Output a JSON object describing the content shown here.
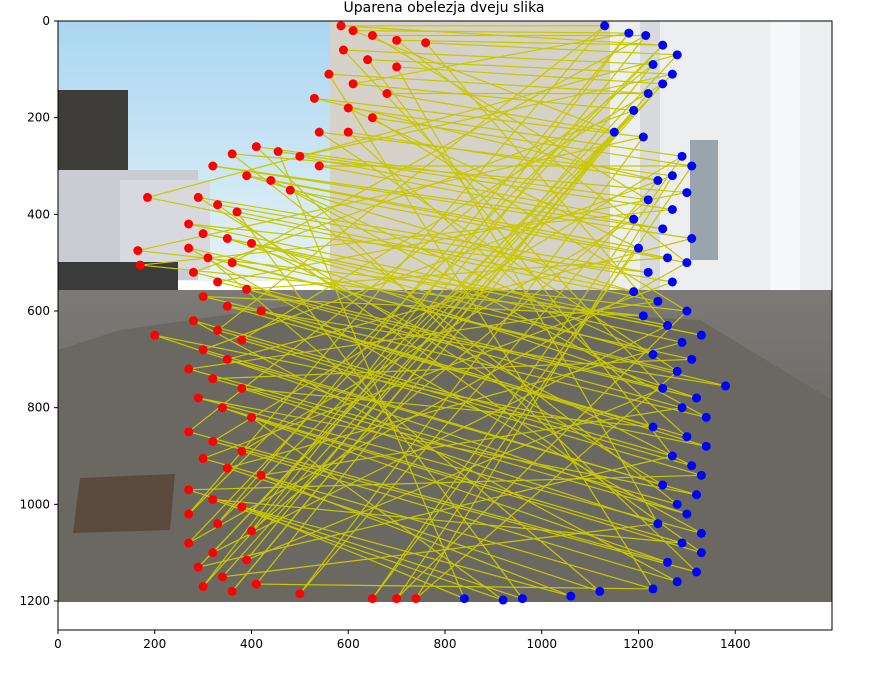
{
  "chart_data": {
    "type": "scatter",
    "title": "Uparena obelezja dveju slika",
    "xlabel": "",
    "ylabel": "",
    "xlim": [
      0,
      1600
    ],
    "ylim": [
      1260,
      0
    ],
    "y_inverted": true,
    "image_extent": {
      "width": 1600,
      "height": 1200
    },
    "x_ticks": [
      0,
      200,
      400,
      600,
      800,
      1000,
      1200,
      1400
    ],
    "y_ticks": [
      0,
      200,
      400,
      600,
      800,
      1000,
      1200
    ],
    "x_tick_labels": [
      "0",
      "200",
      "400",
      "600",
      "800",
      "1000",
      "1200",
      "1400"
    ],
    "y_tick_labels": [
      "0",
      "200",
      "400",
      "600",
      "800",
      "1000",
      "1200"
    ],
    "grid": false,
    "colors": {
      "left_points": "#ff0000",
      "right_points": "#0000ff",
      "match_lines": "#c8c800",
      "background_sky": "#bfe3f5",
      "background_house": "#e8e8ea",
      "background_ground": "#6f6c67"
    },
    "series": [
      {
        "role": "left_points",
        "marker": "circle",
        "points": [
          [
            585,
            10
          ],
          [
            610,
            20
          ],
          [
            650,
            30
          ],
          [
            700,
            40
          ],
          [
            760,
            45
          ],
          [
            590,
            60
          ],
          [
            640,
            80
          ],
          [
            700,
            95
          ],
          [
            560,
            110
          ],
          [
            610,
            130
          ],
          [
            680,
            150
          ],
          [
            530,
            160
          ],
          [
            600,
            180
          ],
          [
            650,
            200
          ],
          [
            540,
            230
          ],
          [
            600,
            230
          ],
          [
            360,
            275
          ],
          [
            410,
            260
          ],
          [
            455,
            270
          ],
          [
            500,
            280
          ],
          [
            540,
            300
          ],
          [
            320,
            300
          ],
          [
            390,
            320
          ],
          [
            440,
            330
          ],
          [
            480,
            350
          ],
          [
            290,
            365
          ],
          [
            330,
            380
          ],
          [
            370,
            395
          ],
          [
            185,
            365
          ],
          [
            165,
            475
          ],
          [
            170,
            505
          ],
          [
            270,
            420
          ],
          [
            300,
            440
          ],
          [
            350,
            450
          ],
          [
            400,
            460
          ],
          [
            270,
            470
          ],
          [
            310,
            490
          ],
          [
            360,
            500
          ],
          [
            280,
            520
          ],
          [
            330,
            540
          ],
          [
            390,
            555
          ],
          [
            300,
            570
          ],
          [
            350,
            590
          ],
          [
            420,
            600
          ],
          [
            200,
            650
          ],
          [
            280,
            620
          ],
          [
            330,
            640
          ],
          [
            380,
            660
          ],
          [
            300,
            680
          ],
          [
            350,
            700
          ],
          [
            270,
            720
          ],
          [
            320,
            740
          ],
          [
            380,
            760
          ],
          [
            290,
            780
          ],
          [
            340,
            800
          ],
          [
            400,
            820
          ],
          [
            270,
            850
          ],
          [
            320,
            870
          ],
          [
            380,
            890
          ],
          [
            300,
            905
          ],
          [
            350,
            925
          ],
          [
            420,
            940
          ],
          [
            270,
            970
          ],
          [
            320,
            990
          ],
          [
            380,
            1005
          ],
          [
            270,
            1020
          ],
          [
            330,
            1040
          ],
          [
            400,
            1055
          ],
          [
            270,
            1080
          ],
          [
            320,
            1100
          ],
          [
            390,
            1115
          ],
          [
            290,
            1130
          ],
          [
            340,
            1150
          ],
          [
            410,
            1165
          ],
          [
            300,
            1170
          ],
          [
            360,
            1180
          ],
          [
            500,
            1185
          ],
          [
            650,
            1195
          ],
          [
            700,
            1195
          ],
          [
            740,
            1195
          ]
        ]
      },
      {
        "role": "right_points",
        "marker": "circle",
        "points": [
          [
            1130,
            10
          ],
          [
            1180,
            25
          ],
          [
            1215,
            30
          ],
          [
            1250,
            50
          ],
          [
            1280,
            70
          ],
          [
            1230,
            90
          ],
          [
            1270,
            110
          ],
          [
            1250,
            130
          ],
          [
            1220,
            150
          ],
          [
            1190,
            185
          ],
          [
            1150,
            230
          ],
          [
            1210,
            240
          ],
          [
            1290,
            280
          ],
          [
            1310,
            300
          ],
          [
            1270,
            320
          ],
          [
            1240,
            330
          ],
          [
            1300,
            355
          ],
          [
            1220,
            370
          ],
          [
            1270,
            390
          ],
          [
            1190,
            410
          ],
          [
            1250,
            430
          ],
          [
            1310,
            450
          ],
          [
            1200,
            470
          ],
          [
            1260,
            490
          ],
          [
            1300,
            500
          ],
          [
            1220,
            520
          ],
          [
            1270,
            540
          ],
          [
            1190,
            560
          ],
          [
            1240,
            580
          ],
          [
            1300,
            600
          ],
          [
            1210,
            610
          ],
          [
            1260,
            630
          ],
          [
            1330,
            650
          ],
          [
            1290,
            665
          ],
          [
            1230,
            690
          ],
          [
            1310,
            700
          ],
          [
            1280,
            725
          ],
          [
            1380,
            755
          ],
          [
            1250,
            760
          ],
          [
            1320,
            780
          ],
          [
            1290,
            800
          ],
          [
            1340,
            820
          ],
          [
            1230,
            840
          ],
          [
            1300,
            860
          ],
          [
            1340,
            880
          ],
          [
            1270,
            900
          ],
          [
            1310,
            920
          ],
          [
            1330,
            940
          ],
          [
            1250,
            960
          ],
          [
            1320,
            980
          ],
          [
            1280,
            1000
          ],
          [
            1300,
            1020
          ],
          [
            1240,
            1040
          ],
          [
            1330,
            1060
          ],
          [
            1290,
            1080
          ],
          [
            1330,
            1100
          ],
          [
            1260,
            1120
          ],
          [
            1320,
            1140
          ],
          [
            1280,
            1160
          ],
          [
            1230,
            1175
          ],
          [
            1120,
            1180
          ],
          [
            1060,
            1190
          ],
          [
            960,
            1195
          ],
          [
            920,
            1198
          ],
          [
            840,
            1195
          ]
        ]
      }
    ]
  }
}
